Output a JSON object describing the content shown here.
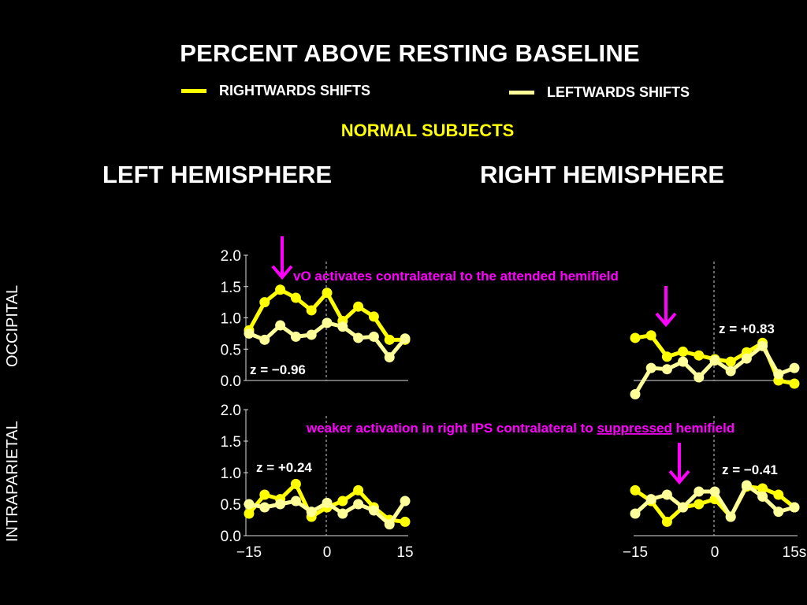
{
  "title": "PERCENT ABOVE RESTING BASELINE",
  "legend": [
    {
      "label": "RIGHTWARDS SHIFTS",
      "color": "#ffff00"
    },
    {
      "label": "LEFTWARDS SHIFTS",
      "color": "#ffff99"
    }
  ],
  "subtitle": "NORMAL  SUBJECTS",
  "subtitle_color": "#ffff00",
  "columns": {
    "left": "LEFT HEMISPHERE",
    "right": "RIGHT HEMISPHERE"
  },
  "rows": {
    "top": "OCCIPITAL",
    "bottom": "INTRAPARIETAL"
  },
  "annotations": {
    "color": "#ff00ff",
    "top_text": "vO activates contralateral to the attended hemifield",
    "bottom_before": "weaker activation in right IPS contralateral to ",
    "bottom_underlined": "suppressed",
    "bottom_after": " hemifield"
  },
  "chart_data": [
    {
      "type": "line",
      "name": "left-occipital",
      "ylim": [
        0,
        2.0
      ],
      "xlim": [
        -15,
        15
      ],
      "y_ticks": [
        "0.0",
        "0.5",
        "1.0",
        "1.5",
        "2.0"
      ],
      "x_ticks": [],
      "x_tick_labels": [],
      "z_label": "z = −0.96",
      "x": [
        -15,
        -12,
        -9,
        -6,
        -3,
        0,
        3,
        6,
        9,
        12,
        15
      ],
      "series": [
        {
          "values": [
            0.8,
            1.25,
            1.45,
            1.32,
            1.12,
            1.4,
            0.95,
            1.18,
            1.02,
            0.65,
            0.65
          ],
          "color": "#ffff00"
        },
        {
          "values": [
            0.75,
            0.65,
            0.88,
            0.7,
            0.73,
            0.92,
            0.86,
            0.68,
            0.7,
            0.37,
            0.67
          ],
          "color": "#ffff99"
        }
      ]
    },
    {
      "type": "line",
      "name": "right-occipital",
      "ylim": [
        0,
        2.0
      ],
      "xlim": [
        -15,
        15
      ],
      "y_ticks": [],
      "x_ticks": [],
      "x_tick_labels": [],
      "z_label": "z = +0.83",
      "x": [
        -15,
        -12,
        -9,
        -6,
        -3,
        0,
        3,
        6,
        9,
        12,
        15
      ],
      "series": [
        {
          "values": [
            0.68,
            0.72,
            0.38,
            0.46,
            0.4,
            0.34,
            0.3,
            0.45,
            0.6,
            0.0,
            -0.05
          ],
          "color": "#ffff00"
        },
        {
          "values": [
            -0.22,
            0.2,
            0.18,
            0.3,
            0.05,
            0.32,
            0.15,
            0.35,
            0.55,
            0.1,
            0.2
          ],
          "color": "#ffff99"
        }
      ]
    },
    {
      "type": "line",
      "name": "left-intraparietal",
      "ylim": [
        0,
        2.0
      ],
      "xlim": [
        -15,
        15
      ],
      "y_ticks": [
        "0.0",
        "0.5",
        "1.0",
        "1.5",
        "2.0"
      ],
      "x_ticks": [
        -15,
        0,
        15
      ],
      "x_tick_labels": [
        "−15",
        "0",
        "15"
      ],
      "z_label": "z = +0.24",
      "x": [
        -15,
        -12,
        -9,
        -6,
        -3,
        0,
        3,
        6,
        9,
        12,
        15
      ],
      "series": [
        {
          "values": [
            0.35,
            0.65,
            0.58,
            0.82,
            0.3,
            0.45,
            0.55,
            0.72,
            0.45,
            0.25,
            0.22
          ],
          "color": "#ffff00"
        },
        {
          "values": [
            0.5,
            0.45,
            0.5,
            0.55,
            0.38,
            0.52,
            0.35,
            0.5,
            0.4,
            0.18,
            0.55
          ],
          "color": "#ffff99"
        }
      ]
    },
    {
      "type": "line",
      "name": "right-intraparietal",
      "ylim": [
        0,
        2.0
      ],
      "xlim": [
        -15,
        15
      ],
      "y_ticks": [],
      "x_ticks": [
        -15,
        0,
        15
      ],
      "x_tick_labels": [
        "−15",
        "0",
        "15s"
      ],
      "z_label": "z = −0.41",
      "x": [
        -15,
        -12,
        -9,
        -6,
        -3,
        0,
        3,
        6,
        9,
        12,
        15
      ],
      "series": [
        {
          "values": [
            0.72,
            0.55,
            0.22,
            0.45,
            0.5,
            0.58,
            0.3,
            0.78,
            0.75,
            0.65,
            0.45
          ],
          "color": "#ffff00"
        },
        {
          "values": [
            0.35,
            0.58,
            0.65,
            0.45,
            0.7,
            0.7,
            0.3,
            0.8,
            0.62,
            0.38,
            0.45
          ],
          "color": "#ffff99"
        }
      ]
    }
  ]
}
